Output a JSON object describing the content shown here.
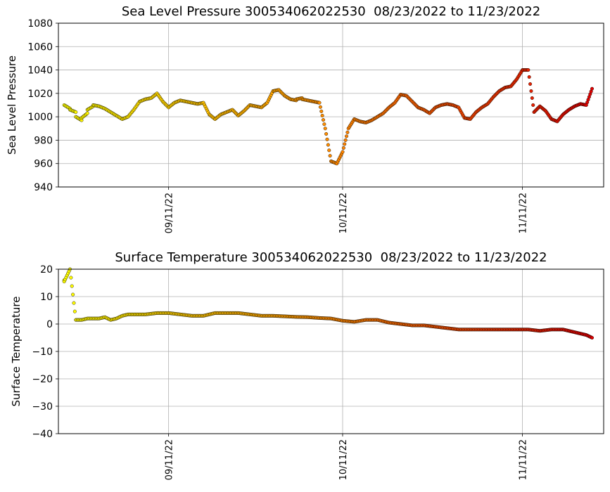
{
  "chart_data": [
    {
      "type": "scatter",
      "title": "Sea Level Pressure 300534062022530  08/23/2022 to 11/23/2022",
      "xlabel": "",
      "ylabel": "Sea Level Pressure",
      "x_range": [
        "2022-08-23",
        "2022-11-25"
      ],
      "ylim": [
        940,
        1080
      ],
      "yticks": [
        940,
        960,
        980,
        1000,
        1020,
        1040,
        1060,
        1080
      ],
      "xticks": [
        {
          "date": "2022-09-11",
          "label": "09/11/22"
        },
        {
          "date": "2022-10-11",
          "label": "10/11/22"
        },
        {
          "date": "2022-11-11",
          "label": "11/11/22"
        }
      ],
      "grid": true,
      "color_scale": [
        "#ffff00",
        "#ff8c00",
        "#e00000"
      ],
      "series": [
        {
          "x": [
            "2022-08-24",
            "2022-08-25",
            "2022-08-25",
            "2022-08-26",
            "2022-08-26",
            "2022-08-27",
            "2022-08-27",
            "2022-08-28",
            "2022-08-28",
            "2022-08-29",
            "2022-08-29",
            "2022-08-30",
            "2022-08-31",
            "2022-09-01",
            "2022-09-02",
            "2022-09-03",
            "2022-09-04",
            "2022-09-05",
            "2022-09-06",
            "2022-09-07",
            "2022-09-08",
            "2022-09-09",
            "2022-09-10",
            "2022-09-11",
            "2022-09-12",
            "2022-09-13",
            "2022-09-14",
            "2022-09-15",
            "2022-09-16",
            "2022-09-17",
            "2022-09-18",
            "2022-09-19",
            "2022-09-20",
            "2022-09-21",
            "2022-09-22",
            "2022-09-23",
            "2022-09-24",
            "2022-09-25",
            "2022-09-26",
            "2022-09-27",
            "2022-09-28",
            "2022-09-29",
            "2022-09-30",
            "2022-10-01",
            "2022-10-02",
            "2022-10-03",
            "2022-10-03",
            "2022-10-04",
            "2022-10-04",
            "2022-10-05",
            "2022-10-06",
            "2022-10-07",
            "2022-10-08",
            "2022-10-09",
            "2022-10-10",
            "2022-10-11",
            "2022-10-12",
            "2022-10-13",
            "2022-10-14",
            "2022-10-15",
            "2022-10-16",
            "2022-10-17",
            "2022-10-18",
            "2022-10-19",
            "2022-10-20",
            "2022-10-21",
            "2022-10-22",
            "2022-10-23",
            "2022-10-24",
            "2022-10-25",
            "2022-10-26",
            "2022-10-27",
            "2022-10-28",
            "2022-10-29",
            "2022-10-30",
            "2022-10-31",
            "2022-11-01",
            "2022-11-02",
            "2022-11-03",
            "2022-11-04",
            "2022-11-05",
            "2022-11-06",
            "2022-11-07",
            "2022-11-08",
            "2022-11-09",
            "2022-11-10",
            "2022-11-11",
            "2022-11-12",
            "2022-11-13",
            "2022-11-14",
            "2022-11-15",
            "2022-11-16",
            "2022-11-17",
            "2022-11-18",
            "2022-11-19",
            "2022-11-20",
            "2022-11-21",
            "2022-11-22",
            "2022-11-23"
          ],
          "y": [
            1010,
            1007,
            1006,
            1004,
            1000,
            997,
            999,
            1003,
            1006,
            1009,
            1010,
            1009,
            1007,
            1004,
            1001,
            998,
            1000,
            1006,
            1013,
            1015,
            1016,
            1020,
            1013,
            1008,
            1012,
            1014,
            1013,
            1012,
            1011,
            1012,
            1002,
            998,
            1002,
            1004,
            1006,
            1001,
            1005,
            1010,
            1009,
            1008,
            1012,
            1022,
            1023,
            1018,
            1015,
            1014,
            1015,
            1016,
            1015,
            1014,
            1013,
            1012,
            990,
            962,
            960,
            970,
            990,
            998,
            996,
            995,
            997,
            1000,
            1003,
            1008,
            1012,
            1019,
            1018,
            1013,
            1008,
            1006,
            1003,
            1008,
            1010,
            1011,
            1010,
            1008,
            999,
            998,
            1004,
            1008,
            1011,
            1017,
            1022,
            1025,
            1026,
            1032,
            1040,
            1040,
            1004,
            1009,
            1005,
            998,
            996,
            1002,
            1006,
            1009,
            1011,
            1010,
            1024
          ],
          "n_note": "approximate trace read from dots"
        }
      ]
    },
    {
      "type": "scatter",
      "title": "Surface Temperature 300534062022530  08/23/2022 to 11/23/2022",
      "xlabel": "",
      "ylabel": "Surface Temperature",
      "x_range": [
        "2022-08-23",
        "2022-11-25"
      ],
      "ylim": [
        -40,
        20
      ],
      "yticks": [
        -40,
        -30,
        -20,
        -10,
        0,
        10,
        20
      ],
      "xticks": [
        {
          "date": "2022-09-11",
          "label": "09/11/22"
        },
        {
          "date": "2022-10-11",
          "label": "10/11/22"
        },
        {
          "date": "2022-11-11",
          "label": "11/11/22"
        }
      ],
      "grid": true,
      "color_scale": [
        "#ffff00",
        "#ff8c00",
        "#e00000"
      ],
      "series": [
        {
          "x": [
            "2022-08-24",
            "2022-08-24",
            "2022-08-25",
            "2022-08-26",
            "2022-08-27",
            "2022-08-28",
            "2022-08-29",
            "2022-08-30",
            "2022-08-31",
            "2022-09-01",
            "2022-09-02",
            "2022-09-03",
            "2022-09-04",
            "2022-09-05",
            "2022-09-07",
            "2022-09-09",
            "2022-09-11",
            "2022-09-13",
            "2022-09-15",
            "2022-09-17",
            "2022-09-19",
            "2022-09-21",
            "2022-09-23",
            "2022-09-25",
            "2022-09-27",
            "2022-09-29",
            "2022-10-01",
            "2022-10-03",
            "2022-10-05",
            "2022-10-07",
            "2022-10-09",
            "2022-10-11",
            "2022-10-13",
            "2022-10-15",
            "2022-10-17",
            "2022-10-19",
            "2022-10-21",
            "2022-10-23",
            "2022-10-25",
            "2022-10-27",
            "2022-10-29",
            "2022-10-31",
            "2022-11-02",
            "2022-11-04",
            "2022-11-06",
            "2022-11-08",
            "2022-11-10",
            "2022-11-12",
            "2022-11-14",
            "2022-11-16",
            "2022-11-18",
            "2022-11-20",
            "2022-11-22",
            "2022-11-23"
          ],
          "y": [
            16,
            15.5,
            20,
            1.5,
            1.5,
            2,
            2,
            2,
            2.5,
            1.5,
            2,
            3,
            3.5,
            3.5,
            3.5,
            4,
            4,
            3.5,
            3,
            3,
            4,
            4,
            4,
            3.5,
            3,
            3,
            2.8,
            2.6,
            2.5,
            2.2,
            2,
            1.2,
            0.8,
            1.5,
            1.5,
            0.5,
            0,
            -0.5,
            -0.5,
            -1,
            -1.5,
            -2,
            -2,
            -2,
            -2,
            -2,
            -2,
            -2,
            -2.5,
            -2,
            -2,
            -3,
            -4,
            -5
          ]
        }
      ]
    }
  ]
}
